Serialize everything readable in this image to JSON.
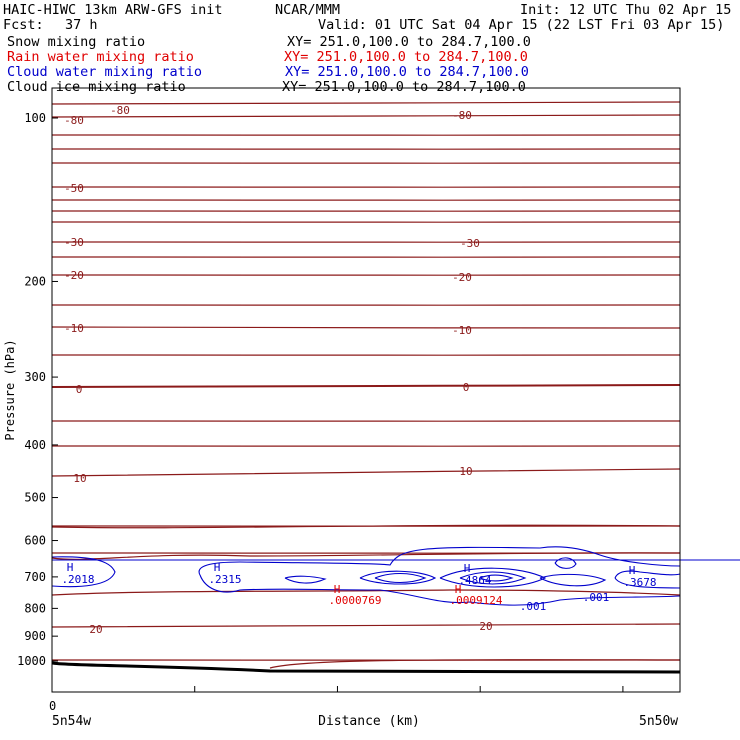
{
  "header": {
    "title": "HAIC-HIWC 13km ARW-GFS init",
    "center": "NCAR/MMM",
    "init": "Init: 12 UTC Thu 02 Apr 15",
    "fcst_label": "Fcst:",
    "fcst_value": "37 h",
    "valid": "Valid: 01 UTC Sat 04 Apr 15 (22 LST Fri 03 Apr 15)"
  },
  "fields": [
    {
      "label": "Snow mixing ratio",
      "xy": "XY= 251.0,100.0 to 284.7,100.0",
      "color": "#000000"
    },
    {
      "label": "Rain water mixing ratio",
      "xy": "XY= 251.0,100.0 to 284.7,100.0",
      "color": "#e00000"
    },
    {
      "label": "Cloud water mixing ratio",
      "xy": "XY= 251.0,100.0 to 284.7,100.0",
      "color": "#0000cc"
    },
    {
      "label": "Cloud ice mixing ratio",
      "xy": "XY= 251.0,100.0 to 284.7,100.0",
      "color": "#000000"
    }
  ],
  "chart_data": {
    "type": "cross-section",
    "xlabel": "Distance (km)",
    "ylabel": "Pressure (hPa)",
    "x_start_label": "5n54w",
    "x_end_label": "5n50w",
    "x_zero_label": "0",
    "yticks": [
      100,
      200,
      300,
      400,
      500,
      600,
      700,
      800,
      900,
      1000
    ],
    "ylim": [
      1050,
      50
    ],
    "scale": "log-pressure",
    "temperature_contour_levels": [
      -80,
      -75,
      -70,
      -65,
      -60,
      -55,
      -50,
      -45,
      -40,
      -35,
      -30,
      -25,
      -20,
      -15,
      -10,
      -5,
      0,
      5,
      10,
      15,
      20,
      25
    ],
    "temperature_labels": [
      {
        "text": "-80",
        "x": 0.12,
        "p": 93
      },
      {
        "text": "-80",
        "x": 0.03,
        "p": 100
      },
      {
        "text": "-80",
        "x": 0.66,
        "p": 96
      },
      {
        "text": "-50",
        "x": 0.04,
        "p": 212
      },
      {
        "text": "-30",
        "x": 0.04,
        "p": 300
      },
      {
        "text": "-30",
        "x": 0.67,
        "p": 300
      },
      {
        "text": "-20",
        "x": 0.04,
        "p": 352
      },
      {
        "text": "-20",
        "x": 0.66,
        "p": 356
      },
      {
        "text": "-10",
        "x": 0.04,
        "p": 441
      },
      {
        "text": "-10",
        "x": 0.66,
        "p": 444
      },
      {
        "text": "0",
        "x": 0.04,
        "p": 539
      },
      {
        "text": "0",
        "x": 0.66,
        "p": 537
      },
      {
        "text": "10",
        "x": 0.04,
        "p": 691
      },
      {
        "text": "10",
        "x": 0.66,
        "p": 679
      },
      {
        "text": "20",
        "x": 0.06,
        "p": 937
      },
      {
        "text": "20",
        "x": 0.69,
        "p": 932
      }
    ],
    "cloud_water_maxima": [
      {
        "label": "H",
        "value": ".2018",
        "x": 0.03,
        "p": 861
      },
      {
        "label": "H",
        "value": ".2315",
        "x": 0.26,
        "p": 861
      },
      {
        "label": "H",
        "value": ".4864",
        "x": 0.66,
        "p": 857
      },
      {
        "label": "H",
        "value": ".3678",
        "x": 0.92,
        "p": 861
      }
    ],
    "cloud_water_labels": [
      {
        "value": ".001",
        "x": 0.76,
        "p": 897
      },
      {
        "value": ".001",
        "x": 0.87,
        "p": 891
      }
    ],
    "rain_water_maxima": [
      {
        "label": "H",
        "value": ".0000769",
        "x": 0.46,
        "p": 884
      },
      {
        "label": "H",
        "value": ".0009124",
        "x": 0.65,
        "p": 884
      }
    ],
    "terrain": {
      "p_left": 1000,
      "p_right": 1010
    }
  }
}
